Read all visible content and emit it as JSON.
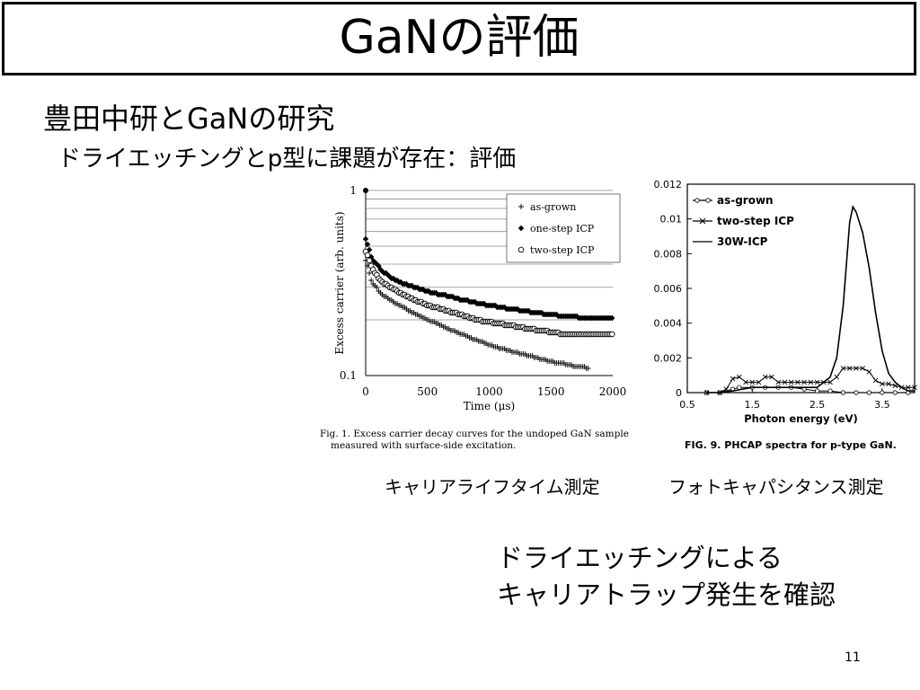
{
  "slide": {
    "title": "GaNの評価",
    "heading": "豊田中研とGaNの研究",
    "subheading": "ドライエッチングとp型に課題が存在：評価",
    "caption_left": "キャリアライフタイム測定",
    "caption_right": "フォトキャパシタンス測定",
    "conclusion_line1": "ドライエッチングによる",
    "conclusion_line2": "キャリアトラップ発生を確認",
    "page_number": "11"
  },
  "chart_data": [
    {
      "type": "scatter",
      "y_scale": "log",
      "xlabel": "Time (μs)",
      "ylabel": "Excess carrier (arb. units)",
      "xlim": [
        0,
        2000
      ],
      "ylim": [
        0.1,
        1
      ],
      "x_ticks": [
        "0",
        "500",
        "1000",
        "1500",
        "2000"
      ],
      "y_ticks": [
        "1",
        "0.1"
      ],
      "legend": "top-right",
      "grid": true,
      "figure_caption_line1": "Fig. 1.   Excess   carrier   decay   curves   for   the   undoped   GaN   sample",
      "figure_caption_line2": "measured with surface-side excitation.",
      "series": [
        {
          "name": "as-grown",
          "marker": "+",
          "x": [
            0,
            50,
            100,
            150,
            200,
            300,
            400,
            500,
            600,
            700,
            800,
            900,
            1000,
            1100,
            1200,
            1300,
            1400,
            1500,
            1600,
            1700,
            1800
          ],
          "values": [
            0.42,
            0.32,
            0.29,
            0.27,
            0.255,
            0.235,
            0.215,
            0.2,
            0.188,
            0.175,
            0.165,
            0.155,
            0.147,
            0.14,
            0.134,
            0.129,
            0.124,
            0.119,
            0.116,
            0.112,
            0.11
          ]
        },
        {
          "name": "one-step ICP",
          "marker": "diamond",
          "x": [
            0,
            50,
            100,
            150,
            200,
            300,
            400,
            500,
            600,
            700,
            800,
            900,
            1000,
            1100,
            1200,
            1300,
            1400,
            1500,
            1600,
            1700,
            1800,
            1900,
            2000
          ],
          "values": [
            0.55,
            0.43,
            0.39,
            0.36,
            0.34,
            0.315,
            0.3,
            0.285,
            0.275,
            0.265,
            0.255,
            0.247,
            0.24,
            0.233,
            0.228,
            0.222,
            0.218,
            0.213,
            0.21,
            0.207,
            0.205,
            0.205,
            0.205
          ]
        },
        {
          "name": "two-step ICP",
          "marker": "circle",
          "x": [
            0,
            50,
            100,
            150,
            200,
            300,
            400,
            500,
            600,
            700,
            800,
            900,
            1000,
            1100,
            1200,
            1300,
            1400,
            1500,
            1600,
            1700,
            1800,
            1900,
            2000
          ],
          "values": [
            0.47,
            0.38,
            0.34,
            0.315,
            0.3,
            0.275,
            0.255,
            0.24,
            0.23,
            0.22,
            0.21,
            0.2,
            0.195,
            0.19,
            0.185,
            0.18,
            0.176,
            0.172,
            0.168,
            0.166,
            0.166,
            0.166,
            0.166
          ]
        }
      ]
    },
    {
      "type": "line",
      "xlabel": "Photon energy (eV)",
      "ylabel": "",
      "xlim": [
        0.5,
        4
      ],
      "ylim": [
        0,
        0.012
      ],
      "x_ticks": [
        "0.5",
        "1.5",
        "2.5",
        "3.5"
      ],
      "y_ticks": [
        "0",
        "0.002",
        "0.004",
        "0.006",
        "0.008",
        "0.01",
        "0.012"
      ],
      "legend": "top-left",
      "figure_caption": "FIG. 9.  PHCAP spectra for p-type GaN.",
      "series": [
        {
          "name": "as-grown",
          "marker": "circle",
          "x": [
            0.8,
            1.0,
            1.2,
            1.3,
            1.5,
            1.7,
            1.9,
            2.1,
            2.3,
            2.5,
            2.7,
            2.9,
            3.1,
            3.3,
            3.5,
            3.7,
            3.9
          ],
          "values": [
            0,
            0,
            0.0002,
            0.0003,
            0.0003,
            0.0003,
            0.0003,
            0.0003,
            0.0002,
            0.0001,
            0.0001,
            0,
            0,
            0,
            0,
            0,
            0
          ]
        },
        {
          "name": "two-step ICP",
          "marker": "x",
          "x": [
            0.8,
            1.0,
            1.1,
            1.2,
            1.3,
            1.4,
            1.5,
            1.6,
            1.7,
            1.8,
            1.9,
            2.0,
            2.1,
            2.2,
            2.3,
            2.4,
            2.5,
            2.6,
            2.7,
            2.8,
            2.9,
            3.0,
            3.1,
            3.2,
            3.3,
            3.4,
            3.5,
            3.6,
            3.7,
            3.8,
            3.9,
            4.0
          ],
          "values": [
            0,
            0,
            0.0002,
            0.0008,
            0.0009,
            0.0006,
            0.0006,
            0.0006,
            0.0009,
            0.0009,
            0.0006,
            0.0006,
            0.0006,
            0.0006,
            0.0006,
            0.0006,
            0.0006,
            0.0006,
            0.0006,
            0.0009,
            0.0014,
            0.0014,
            0.0014,
            0.0014,
            0.0012,
            0.0007,
            0.0005,
            0.0005,
            0.0004,
            0.0003,
            0.0003,
            0.0003
          ]
        },
        {
          "name": "30W-ICP",
          "marker": "none",
          "x": [
            0.8,
            1.0,
            1.2,
            1.5,
            2.0,
            2.5,
            2.7,
            2.8,
            2.9,
            3.0,
            3.05,
            3.1,
            3.2,
            3.3,
            3.4,
            3.5,
            3.6,
            3.7,
            3.8,
            3.9,
            4.0
          ],
          "values": [
            0,
            0,
            0.0001,
            0.0003,
            0.0003,
            0.0003,
            0.0009,
            0.002,
            0.005,
            0.0098,
            0.0107,
            0.0104,
            0.0092,
            0.0072,
            0.0046,
            0.0024,
            0.0011,
            0.0006,
            0.0003,
            0.0001,
            0.0001
          ]
        }
      ]
    }
  ]
}
